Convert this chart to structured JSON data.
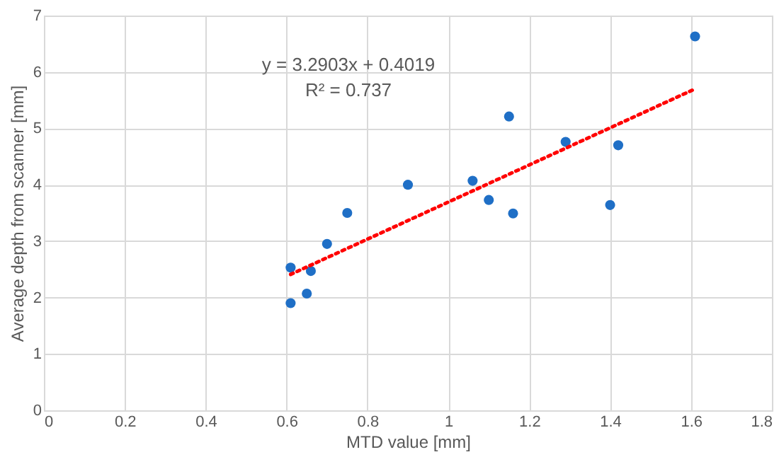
{
  "chart_data": {
    "type": "scatter",
    "xlabel": "MTD value [mm]",
    "ylabel": "Average depth from scanner [mm]",
    "xlim": [
      0,
      1.8
    ],
    "xticks": [
      0,
      0.2,
      0.4,
      0.6,
      0.8,
      1,
      1.2,
      1.4,
      1.6,
      1.8
    ],
    "ylim": [
      0,
      7
    ],
    "yticks": [
      0,
      1,
      2,
      3,
      4,
      5,
      6,
      7
    ],
    "grid": true,
    "annotations": [
      "y = 3.2903x + 0.4019",
      "R² = 0.737"
    ],
    "series": [
      {
        "color": "#1f6fc6",
        "marker": "circle",
        "x": [
          0.61,
          0.61,
          0.65,
          0.66,
          0.7,
          0.75,
          0.9,
          1.06,
          1.1,
          1.15,
          1.16,
          1.29,
          1.4,
          1.42,
          1.61
        ],
        "values": [
          2.53,
          1.9,
          2.07,
          2.47,
          2.95,
          3.5,
          4.0,
          4.07,
          3.73,
          5.21,
          3.49,
          4.76,
          3.64,
          4.7,
          6.63
        ]
      },
      {
        "type": "line",
        "color": "#ff0000",
        "line_style": "dotted",
        "marker": "none",
        "x": [
          0.61,
          1.61
        ],
        "values": [
          2.41,
          5.7
        ]
      }
    ]
  }
}
